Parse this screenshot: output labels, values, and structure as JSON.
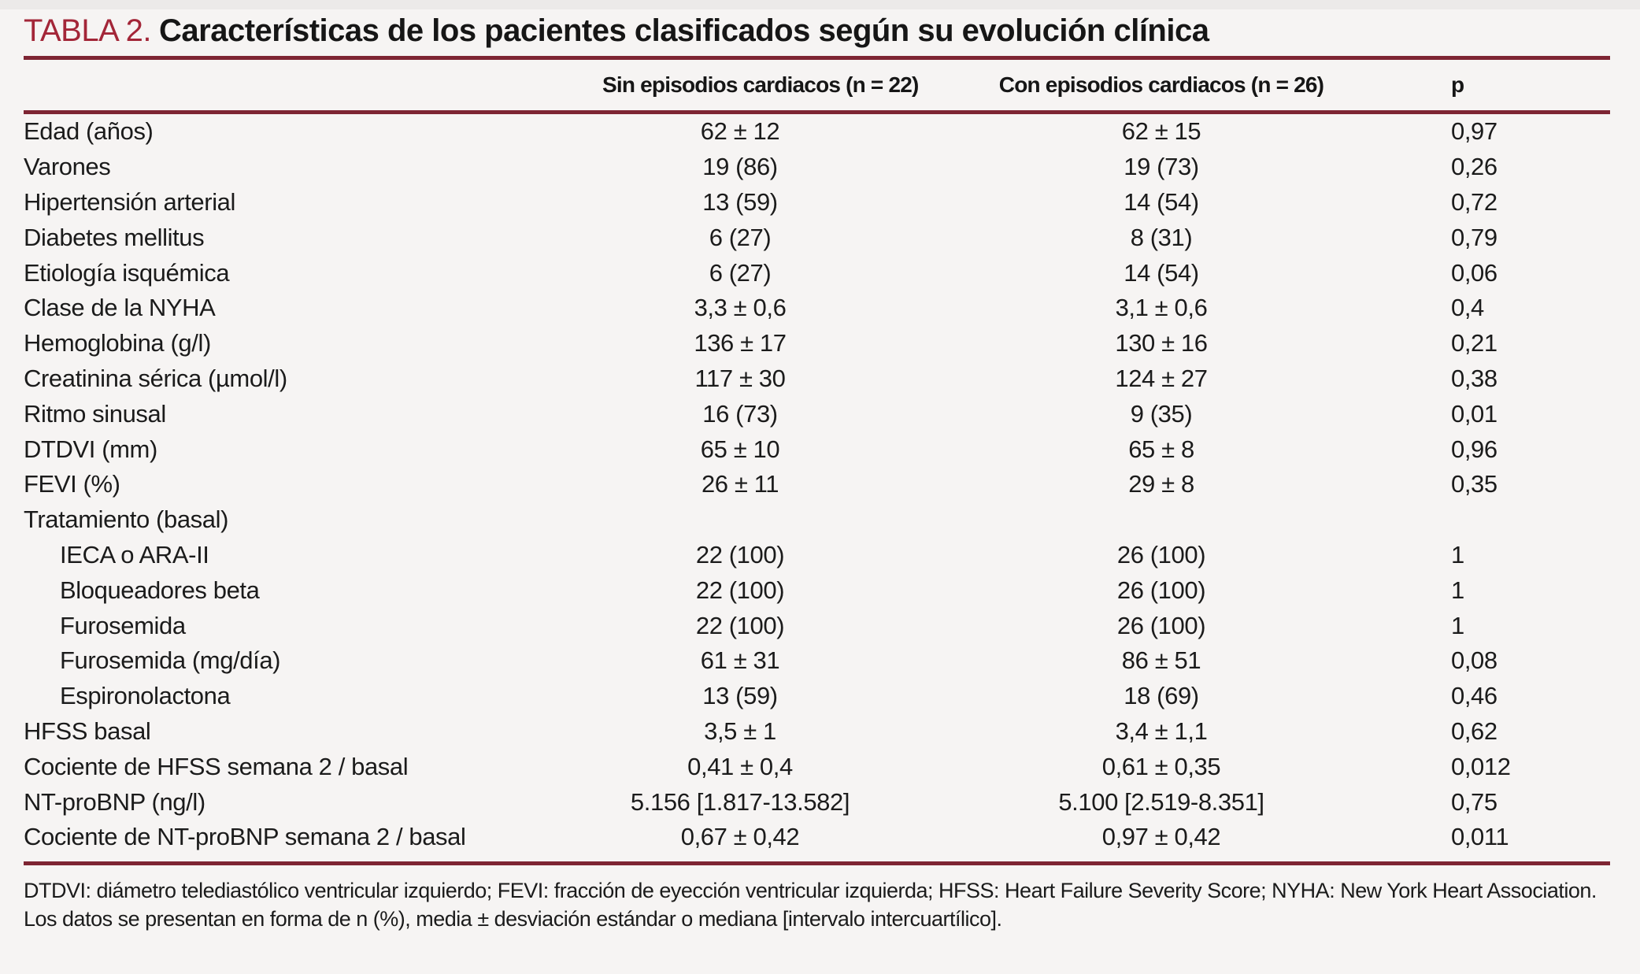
{
  "colors": {
    "accent": "#A32638",
    "rule": "#7E2533",
    "background": "#F6F4F3",
    "text": "#1B1B1B"
  },
  "table": {
    "label": "TABLA 2.",
    "title": "Características de los pacientes clasificados según su evolución clínica",
    "columns": {
      "group1": "Sin episodios cardiacos (n = 22)",
      "group2": "Con episodios cardiacos (n = 26)",
      "p": "p"
    },
    "rows": [
      {
        "label": "Edad (años)",
        "indent": false,
        "section": false,
        "c1": "62 ± 12",
        "c2": "62 ± 15",
        "p": "0,97"
      },
      {
        "label": "Varones",
        "indent": false,
        "section": false,
        "c1": "19 (86)",
        "c2": "19 (73)",
        "p": "0,26"
      },
      {
        "label": "Hipertensión arterial",
        "indent": false,
        "section": false,
        "c1": "13 (59)",
        "c2": "14 (54)",
        "p": "0,72"
      },
      {
        "label": "Diabetes mellitus",
        "indent": false,
        "section": false,
        "c1": "6 (27)",
        "c2": "8 (31)",
        "p": "0,79"
      },
      {
        "label": "Etiología isquémica",
        "indent": false,
        "section": false,
        "c1": "6 (27)",
        "c2": "14 (54)",
        "p": "0,06"
      },
      {
        "label": "Clase de la NYHA",
        "indent": false,
        "section": false,
        "c1": "3,3 ± 0,6",
        "c2": "3,1 ± 0,6",
        "p": "0,4"
      },
      {
        "label": "Hemoglobina (g/l)",
        "indent": false,
        "section": false,
        "c1": "136 ± 17",
        "c2": "130 ± 16",
        "p": "0,21"
      },
      {
        "label": "Creatinina sérica (µmol/l)",
        "indent": false,
        "section": false,
        "c1": "117 ± 30",
        "c2": "124 ± 27",
        "p": "0,38"
      },
      {
        "label": "Ritmo sinusal",
        "indent": false,
        "section": false,
        "c1": "16 (73)",
        "c2": "9 (35)",
        "p": "0,01"
      },
      {
        "label": "DTDVI (mm)",
        "indent": false,
        "section": false,
        "c1": "65 ± 10",
        "c2": "65 ± 8",
        "p": "0,96"
      },
      {
        "label": "FEVI (%)",
        "indent": false,
        "section": false,
        "c1": "26 ± 11",
        "c2": "29 ± 8",
        "p": "0,35"
      },
      {
        "label": "Tratamiento (basal)",
        "indent": false,
        "section": true,
        "c1": "",
        "c2": "",
        "p": ""
      },
      {
        "label": "IECA o ARA-II",
        "indent": true,
        "section": false,
        "c1": "22 (100)",
        "c2": "26 (100)",
        "p": "1"
      },
      {
        "label": "Bloqueadores beta",
        "indent": true,
        "section": false,
        "c1": "22 (100)",
        "c2": "26 (100)",
        "p": "1"
      },
      {
        "label": "Furosemida",
        "indent": true,
        "section": false,
        "c1": "22 (100)",
        "c2": "26 (100)",
        "p": "1"
      },
      {
        "label": "Furosemida (mg/día)",
        "indent": true,
        "section": false,
        "c1": "61 ± 31",
        "c2": "86 ± 51",
        "p": "0,08"
      },
      {
        "label": "Espironolactona",
        "indent": true,
        "section": false,
        "c1": "13 (59)",
        "c2": "18 (69)",
        "p": "0,46"
      },
      {
        "label": "HFSS basal",
        "indent": false,
        "section": false,
        "c1": "3,5 ± 1",
        "c2": "3,4 ± 1,1",
        "p": "0,62"
      },
      {
        "label": "Cociente de HFSS semana 2 / basal",
        "indent": false,
        "section": false,
        "c1": "0,41 ± 0,4",
        "c2": "0,61 ± 0,35",
        "p": "0,012"
      },
      {
        "label": "NT-proBNP (ng/l)",
        "indent": false,
        "section": false,
        "c1": "5.156 [1.817-13.582]",
        "c2": "5.100 [2.519-8.351]",
        "p": "0,75"
      },
      {
        "label": "Cociente de NT-proBNP semana 2 / basal",
        "indent": false,
        "section": false,
        "c1": "0,67 ± 0,42",
        "c2": "0,97 ± 0,42",
        "p": "0,011"
      }
    ],
    "footnotes": [
      "DTDVI: diámetro telediastólico ventricular izquierdo; FEVI: fracción de eyección ventricular izquierda; HFSS: Heart Failure Severity Score; NYHA: New York Heart Association.",
      "Los datos se presentan en forma de n (%), media ± desviación estándar o mediana [intervalo intercuartílico]."
    ]
  }
}
